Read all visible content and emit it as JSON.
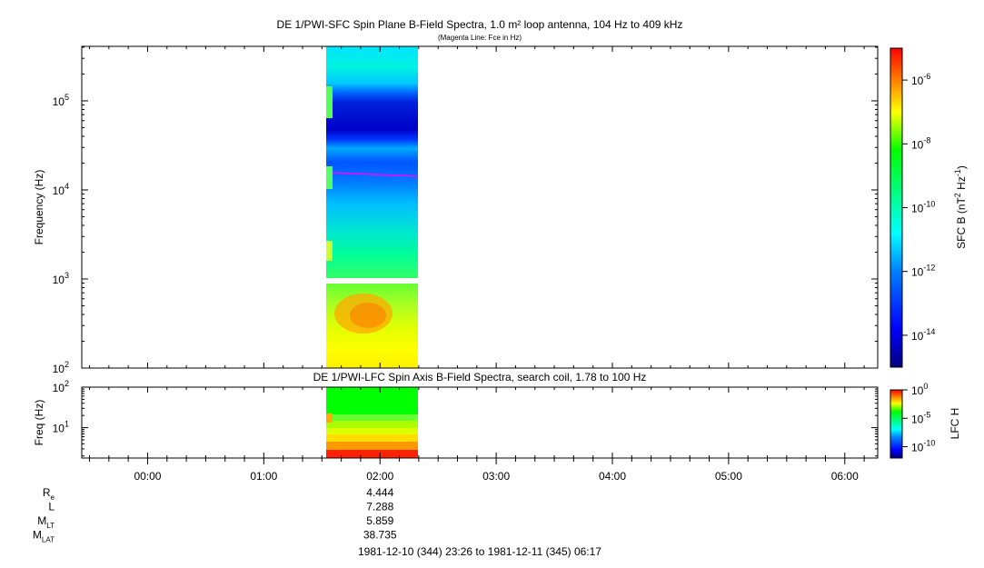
{
  "chart_data": [
    {
      "type": "heatmap",
      "title": "DE 1/PWI-SFC  Spin Plane B-Field Spectra, 1.0 m² loop antenna, 104 Hz to 409 kHz",
      "subtitle": "(Magenta Line: Fce in Hz)",
      "ylabel": "Frequency (Hz)",
      "yscale": "log",
      "ylim": [
        100,
        409000
      ],
      "y_ticks": [
        {
          "value": 100,
          "base": "10",
          "exp": "2"
        },
        {
          "value": 1000,
          "base": "10",
          "exp": "3"
        },
        {
          "value": 10000,
          "base": "10",
          "exp": "4"
        },
        {
          "value": 100000,
          "base": "10",
          "exp": "5"
        }
      ],
      "data_span_x": [
        "01:32",
        "02:18"
      ],
      "data_gap_hz": [
        896,
        1020
      ],
      "colorbar": {
        "label_parts": [
          "SFC B (nT",
          "2",
          " Hz",
          "-1",
          ")"
        ],
        "scale": "log",
        "range": [
          "1e-15",
          "1e-5"
        ],
        "ticks": [
          {
            "value": "1e-6",
            "base": "10",
            "exp": "-6"
          },
          {
            "value": "1e-8",
            "base": "10",
            "exp": "-8"
          },
          {
            "value": "1e-10",
            "base": "10",
            "exp": "-10"
          },
          {
            "value": "1e-12",
            "base": "10",
            "exp": "-12"
          },
          {
            "value": "1e-14",
            "base": "10",
            "exp": "-14"
          }
        ]
      },
      "fce_line_hz": [
        17000,
        14000
      ],
      "fce_line_color": "#ff00ff"
    },
    {
      "type": "heatmap",
      "title": "DE 1/PWI-LFC  Spin Axis B-Field Spectra, search coil, 1.78 to 100 Hz",
      "ylabel": "Freq (Hz)",
      "yscale": "log",
      "ylim": [
        1.78,
        100
      ],
      "y_ticks": [
        {
          "value": 10,
          "base": "10",
          "exp": "1"
        },
        {
          "value": 100,
          "base": "10",
          "exp": "2"
        }
      ],
      "data_span_x": [
        "01:32",
        "02:18"
      ],
      "colorbar": {
        "label": "LFC H",
        "scale": "log",
        "range": [
          "1e-12",
          "1e0"
        ],
        "ticks": [
          {
            "value": "1e0",
            "base": "10",
            "exp": "0"
          },
          {
            "value": "1e-5",
            "base": "10",
            "exp": "-5"
          },
          {
            "value": "1e-10",
            "base": "10",
            "exp": "-10"
          }
        ]
      }
    }
  ],
  "x_axis": {
    "ticks": [
      "00:00",
      "01:00",
      "02:00",
      "03:00",
      "04:00",
      "05:00",
      "06:00"
    ],
    "range_hours": [
      -0.5667,
      6.2833
    ]
  },
  "ephemeris": {
    "rows": [
      {
        "label": "R",
        "sub": "e",
        "value": "4.444"
      },
      {
        "label": "L",
        "sub": "",
        "value": "7.288"
      },
      {
        "label": "M",
        "sub": "LT",
        "value": "5.859"
      },
      {
        "label": "M",
        "sub": "LAT",
        "value": "38.735"
      }
    ],
    "time_range": "1981-12-10 (344) 23:26 to 1981-12-11 (345) 06:17"
  },
  "colors": {
    "axis": "#000000",
    "background": "#ffffff",
    "colormap": [
      "#00007f",
      "#0000ff",
      "#007fff",
      "#00ffff",
      "#7fff7f",
      "#00ff00",
      "#ffff00",
      "#ff7f00",
      "#ff0000"
    ]
  }
}
